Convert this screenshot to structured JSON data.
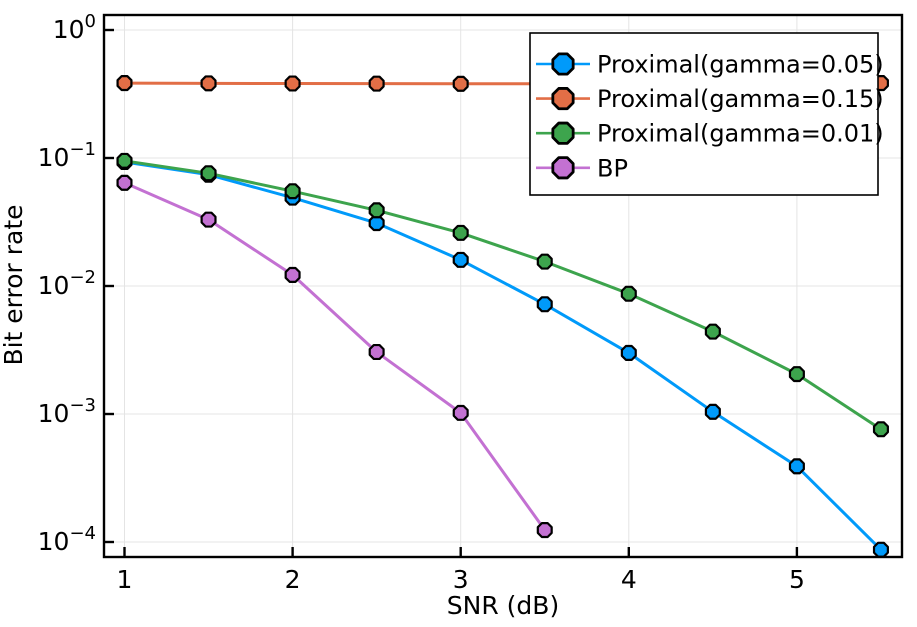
{
  "figure": {
    "background": "#FFFFFF",
    "frame_color": "#000000",
    "grid_color": "#E4E4E4"
  },
  "chart_data": {
    "type": "line",
    "title": "",
    "xlabel": "SNR (dB)",
    "ylabel": "Bit error rate",
    "x_ticks": [
      1,
      2,
      3,
      4,
      5
    ],
    "x_tick_labels": [
      "1",
      "2",
      "3",
      "4",
      "5"
    ],
    "xlim": [
      0.88,
      5.63
    ],
    "yscale": "log10",
    "y_tick_exponents": [
      0,
      -1,
      -2,
      -3,
      -4
    ],
    "y_tick_labels": [
      "10⁰",
      "10⁻¹",
      "10⁻²",
      "10⁻³",
      "10⁻⁴"
    ],
    "ylim": [
      7.6e-05,
      1.31
    ],
    "grid": true,
    "legend_position": "top-right",
    "marker": "octagon",
    "marker_stroke": "#000000",
    "series": [
      {
        "name": "Proximal(gamma=0.05)",
        "color": "#009AFA",
        "x": [
          1,
          1.5,
          2,
          2.5,
          3,
          3.5,
          4,
          4.5,
          5,
          5.5
        ],
        "values": [
          0.093,
          0.074,
          0.049,
          0.031,
          0.016,
          0.0072,
          0.003,
          0.00104,
          0.00039,
          8.7e-05
        ]
      },
      {
        "name": "Proximal(gamma=0.15)",
        "color": "#E26E46",
        "x": [
          1,
          1.5,
          2,
          2.5,
          3,
          3.5,
          4,
          4.5,
          5,
          5.5
        ],
        "values": [
          0.385,
          0.383,
          0.382,
          0.381,
          0.38,
          0.38,
          0.379,
          0.379,
          0.38,
          0.385
        ]
      },
      {
        "name": "Proximal(gamma=0.01)",
        "color": "#3DA44D",
        "x": [
          1,
          1.5,
          2,
          2.5,
          3,
          3.5,
          4,
          4.5,
          5,
          5.5
        ],
        "values": [
          0.095,
          0.076,
          0.055,
          0.039,
          0.026,
          0.0155,
          0.0087,
          0.0044,
          0.00205,
          0.00076
        ]
      },
      {
        "name": "BP",
        "color": "#C371D2",
        "x": [
          1,
          1.5,
          2,
          2.5,
          3,
          3.5
        ],
        "values": [
          0.064,
          0.033,
          0.0122,
          0.00305,
          0.00102,
          0.000124
        ]
      }
    ],
    "legend_entries": [
      "Proximal(gamma=0.05)",
      "Proximal(gamma=0.15)",
      "Proximal(gamma=0.01)",
      "BP"
    ]
  }
}
